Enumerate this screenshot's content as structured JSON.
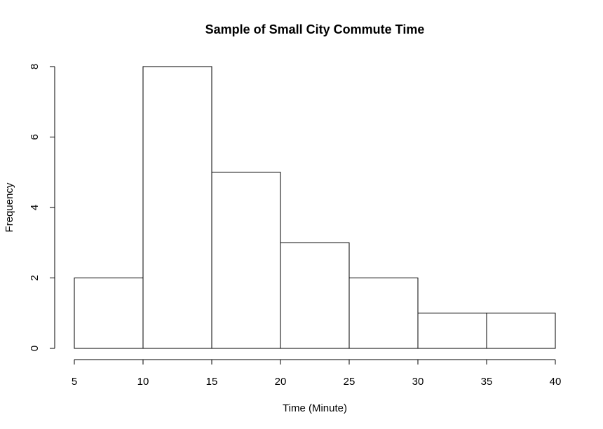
{
  "chart_data": {
    "type": "bar",
    "histogram": true,
    "title": "Sample of Small City Commute Time",
    "xlabel": "Time (Minute)",
    "ylabel": "Frequency",
    "bins": [
      {
        "start": 5,
        "end": 10,
        "count": 2
      },
      {
        "start": 10,
        "end": 15,
        "count": 8
      },
      {
        "start": 15,
        "end": 20,
        "count": 5
      },
      {
        "start": 20,
        "end": 25,
        "count": 3
      },
      {
        "start": 25,
        "end": 30,
        "count": 2
      },
      {
        "start": 30,
        "end": 35,
        "count": 1
      },
      {
        "start": 35,
        "end": 40,
        "count": 1
      }
    ],
    "xlim": [
      5,
      40
    ],
    "ylim": [
      0,
      8
    ],
    "x_ticks": [
      5,
      10,
      15,
      20,
      25,
      30,
      35,
      40
    ],
    "y_ticks": [
      0,
      2,
      4,
      6,
      8
    ],
    "grid": false,
    "bar_fill": "#ffffff",
    "bar_stroke": "#000000"
  }
}
